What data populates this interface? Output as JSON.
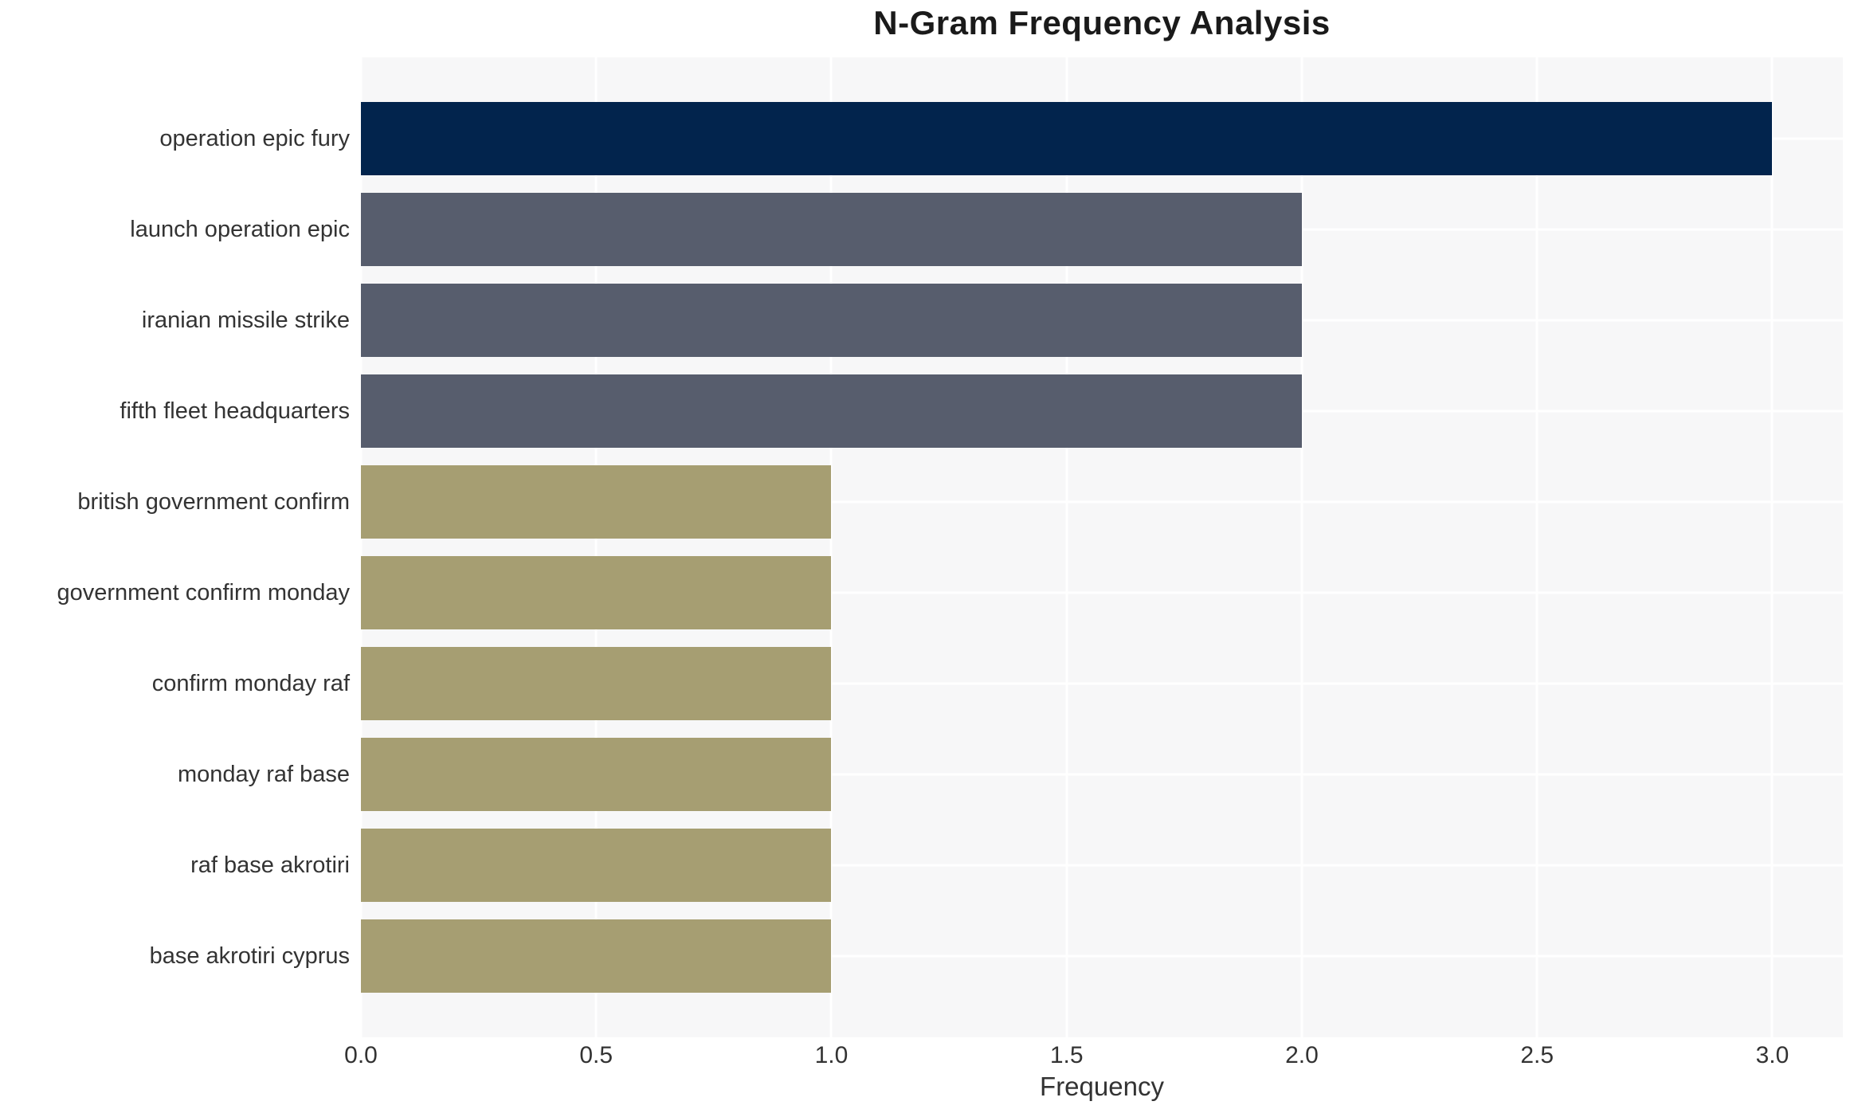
{
  "title": "N-Gram Frequency Analysis",
  "chart_data": {
    "type": "bar",
    "orientation": "horizontal",
    "title": "N-Gram Frequency Analysis",
    "categories": [
      "operation epic fury",
      "launch operation epic",
      "iranian missile strike",
      "fifth fleet headquarters",
      "british government confirm",
      "government confirm monday",
      "confirm monday raf",
      "monday raf base",
      "raf base akrotiri",
      "base akrotiri cyprus"
    ],
    "values": [
      3,
      2,
      2,
      2,
      1,
      1,
      1,
      1,
      1,
      1
    ],
    "bar_colors": [
      "#02244d",
      "#575d6d",
      "#575d6d",
      "#575d6d",
      "#a69e72",
      "#a69e72",
      "#a69e72",
      "#a69e72",
      "#a69e72",
      "#a69e72"
    ],
    "xlabel": "Frequency",
    "ylabel": "",
    "x_ticks": [
      "0.0",
      "0.5",
      "1.0",
      "1.5",
      "2.0",
      "2.5",
      "3.0"
    ],
    "x_tick_values": [
      0,
      0.5,
      1.0,
      1.5,
      2.0,
      2.5,
      3.0
    ],
    "xlim": [
      0,
      3.15
    ],
    "grid": true,
    "legend": false,
    "plot_bg_color": "#f7f7f8",
    "grid_color": "#ffffff",
    "text_color": "#333333"
  }
}
